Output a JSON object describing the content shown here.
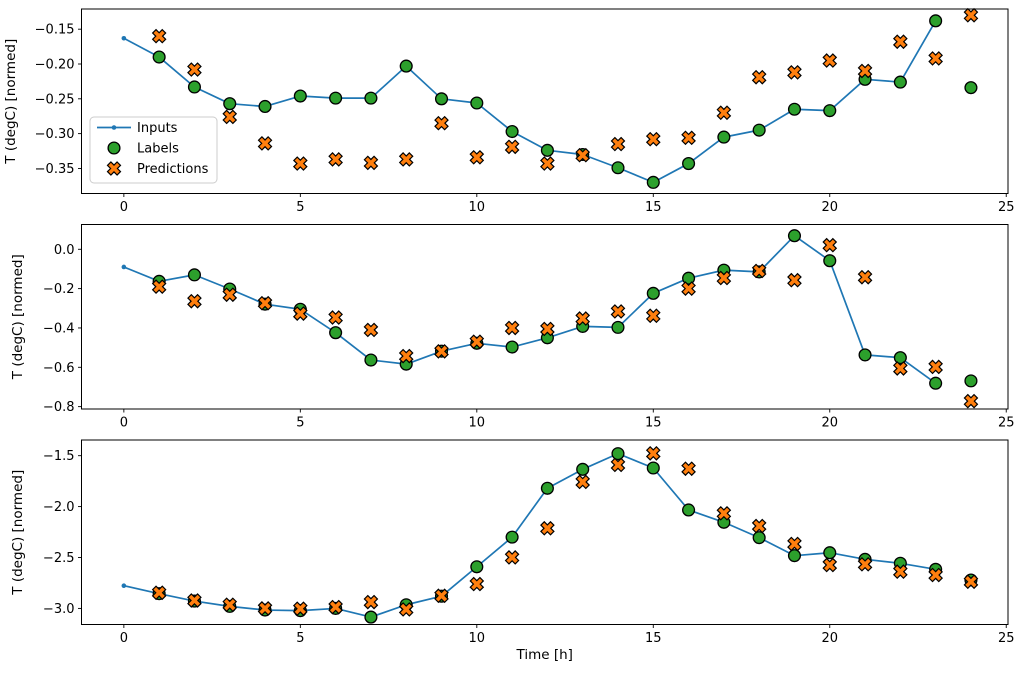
{
  "figure": {
    "background": "#ffffff",
    "xlabel": "Time [h]",
    "ylabel": "T (degC) [normed]"
  },
  "colors": {
    "inputs_line": "#1f77b4",
    "labels_marker": "#2ca02c",
    "predictions_marker": "#ff7f0e",
    "marker_edge": "#000000",
    "legend_border": "#cccccc",
    "legend_background": "#ffffff"
  },
  "legend": {
    "items": [
      {
        "label": "Inputs",
        "marker": "line-dot"
      },
      {
        "label": "Labels",
        "marker": "circle"
      },
      {
        "label": "Predictions",
        "marker": "x-cross"
      }
    ]
  },
  "chart_data": [
    {
      "type": "line",
      "title": "",
      "xlabel": "",
      "ylabel": "T (degC) [normed]",
      "xlim": [
        -1.2,
        25.05
      ],
      "ylim": [
        -0.386,
        -0.121
      ],
      "grid": false,
      "legend": true,
      "legend_position": "center-left",
      "xticks": [
        {
          "value": 0,
          "label": "0"
        },
        {
          "value": 5,
          "label": "5"
        },
        {
          "value": 10,
          "label": "10"
        },
        {
          "value": 15,
          "label": "15"
        },
        {
          "value": 20,
          "label": "20"
        },
        {
          "value": 25,
          "label": "25"
        }
      ],
      "yticks": [
        {
          "value": -0.15,
          "label": "−0.15"
        },
        {
          "value": -0.2,
          "label": "−0.20"
        },
        {
          "value": -0.25,
          "label": "−0.25"
        },
        {
          "value": -0.3,
          "label": "−0.30"
        },
        {
          "value": -0.35,
          "label": "−0.35"
        }
      ],
      "series": [
        {
          "name": "Inputs",
          "kind": "line",
          "color": "#1f77b4",
          "x": [
            0,
            1,
            2,
            3,
            4,
            5,
            6,
            7,
            8,
            9,
            10,
            11,
            12,
            13,
            14,
            15,
            16,
            17,
            18,
            19,
            20,
            21,
            22,
            23
          ],
          "y": [
            -0.163,
            -0.19,
            -0.233,
            -0.257,
            -0.261,
            -0.246,
            -0.249,
            -0.249,
            -0.203,
            -0.25,
            -0.256,
            -0.297,
            -0.324,
            -0.33,
            -0.349,
            -0.37,
            -0.343,
            -0.305,
            -0.295,
            -0.265,
            -0.267,
            -0.222,
            -0.226,
            -0.138
          ]
        },
        {
          "name": "Labels",
          "kind": "scatter_circle",
          "color": "#2ca02c",
          "x": [
            1,
            2,
            3,
            4,
            5,
            6,
            7,
            8,
            9,
            10,
            11,
            12,
            13,
            14,
            15,
            16,
            17,
            18,
            19,
            20,
            21,
            22,
            23,
            24
          ],
          "y": [
            -0.19,
            -0.233,
            -0.257,
            -0.261,
            -0.246,
            -0.249,
            -0.249,
            -0.203,
            -0.25,
            -0.256,
            -0.297,
            -0.324,
            -0.33,
            -0.349,
            -0.37,
            -0.343,
            -0.305,
            -0.295,
            -0.265,
            -0.267,
            -0.222,
            -0.226,
            -0.138,
            -0.234
          ]
        },
        {
          "name": "Predictions",
          "kind": "scatter_x",
          "color": "#ff7f0e",
          "x": [
            1,
            2,
            3,
            4,
            5,
            6,
            7,
            8,
            9,
            10,
            11,
            12,
            13,
            14,
            15,
            16,
            17,
            18,
            19,
            20,
            21,
            22,
            23,
            24
          ],
          "y": [
            -0.16,
            -0.208,
            -0.276,
            -0.314,
            -0.343,
            -0.337,
            -0.342,
            -0.337,
            -0.285,
            -0.334,
            -0.319,
            -0.343,
            -0.331,
            -0.315,
            -0.308,
            -0.306,
            -0.27,
            -0.219,
            -0.212,
            -0.195,
            -0.21,
            -0.168,
            -0.192,
            -0.13
          ]
        }
      ]
    },
    {
      "type": "line",
      "title": "",
      "xlabel": "",
      "ylabel": "T (degC) [normed]",
      "xlim": [
        -1.2,
        25.05
      ],
      "ylim": [
        -0.812,
        0.126
      ],
      "grid": false,
      "legend": false,
      "xticks": [
        {
          "value": 0,
          "label": "0"
        },
        {
          "value": 5,
          "label": "5"
        },
        {
          "value": 10,
          "label": "10"
        },
        {
          "value": 15,
          "label": "15"
        },
        {
          "value": 20,
          "label": "20"
        },
        {
          "value": 25,
          "label": "25"
        }
      ],
      "yticks": [
        {
          "value": 0.0,
          "label": "0.0"
        },
        {
          "value": -0.2,
          "label": "−0.2"
        },
        {
          "value": -0.4,
          "label": "−0.4"
        },
        {
          "value": -0.6,
          "label": "−0.6"
        },
        {
          "value": -0.8,
          "label": "−0.8"
        }
      ],
      "series": [
        {
          "name": "Inputs",
          "kind": "line",
          "color": "#1f77b4",
          "x": [
            0,
            1,
            2,
            3,
            4,
            5,
            6,
            7,
            8,
            9,
            10,
            11,
            12,
            13,
            14,
            15,
            16,
            17,
            18,
            19,
            20,
            21,
            22,
            23
          ],
          "y": [
            -0.09,
            -0.163,
            -0.13,
            -0.202,
            -0.279,
            -0.305,
            -0.424,
            -0.563,
            -0.584,
            -0.518,
            -0.478,
            -0.497,
            -0.45,
            -0.392,
            -0.397,
            -0.224,
            -0.147,
            -0.106,
            -0.115,
            0.069,
            -0.058,
            -0.537,
            -0.551,
            -0.681
          ]
        },
        {
          "name": "Labels",
          "kind": "scatter_circle",
          "color": "#2ca02c",
          "x": [
            1,
            2,
            3,
            4,
            5,
            6,
            7,
            8,
            9,
            10,
            11,
            12,
            13,
            14,
            15,
            16,
            17,
            18,
            19,
            20,
            21,
            22,
            23,
            24
          ],
          "y": [
            -0.163,
            -0.13,
            -0.202,
            -0.279,
            -0.305,
            -0.424,
            -0.563,
            -0.584,
            -0.518,
            -0.478,
            -0.497,
            -0.45,
            -0.392,
            -0.397,
            -0.224,
            -0.147,
            -0.106,
            -0.115,
            0.069,
            -0.058,
            -0.537,
            -0.551,
            -0.681,
            -0.669
          ]
        },
        {
          "name": "Predictions",
          "kind": "scatter_x",
          "color": "#ff7f0e",
          "x": [
            1,
            2,
            3,
            4,
            5,
            6,
            7,
            8,
            9,
            10,
            11,
            12,
            13,
            14,
            15,
            16,
            17,
            18,
            19,
            20,
            21,
            22,
            23,
            24
          ],
          "y": [
            -0.19,
            -0.264,
            -0.231,
            -0.274,
            -0.327,
            -0.347,
            -0.41,
            -0.543,
            -0.519,
            -0.47,
            -0.4,
            -0.405,
            -0.352,
            -0.316,
            -0.338,
            -0.2,
            -0.146,
            -0.11,
            -0.157,
            0.021,
            -0.142,
            -0.606,
            -0.598,
            -0.772
          ]
        }
      ]
    },
    {
      "type": "line",
      "title": "",
      "xlabel": "Time [h]",
      "ylabel": "T (degC) [normed]",
      "xlim": [
        -1.2,
        25.05
      ],
      "ylim": [
        -3.158,
        -1.346
      ],
      "grid": false,
      "legend": false,
      "xticks": [
        {
          "value": 0,
          "label": "0"
        },
        {
          "value": 5,
          "label": "5"
        },
        {
          "value": 10,
          "label": "10"
        },
        {
          "value": 15,
          "label": "15"
        },
        {
          "value": 20,
          "label": "20"
        },
        {
          "value": 25,
          "label": "25"
        }
      ],
      "yticks": [
        {
          "value": -1.5,
          "label": "−1.5"
        },
        {
          "value": -2.0,
          "label": "−2.0"
        },
        {
          "value": -2.5,
          "label": "−2.5"
        },
        {
          "value": -3.0,
          "label": "−3.0"
        }
      ],
      "series": [
        {
          "name": "Inputs",
          "kind": "line",
          "color": "#1f77b4",
          "x": [
            0,
            1,
            2,
            3,
            4,
            5,
            6,
            7,
            8,
            9,
            10,
            11,
            12,
            13,
            14,
            15,
            16,
            17,
            18,
            19,
            20,
            21,
            22,
            23
          ],
          "y": [
            -2.777,
            -2.855,
            -2.928,
            -2.98,
            -3.016,
            -3.022,
            -3.0,
            -3.085,
            -2.964,
            -2.88,
            -2.591,
            -2.3,
            -1.82,
            -1.634,
            -1.48,
            -1.621,
            -2.033,
            -2.154,
            -2.305,
            -2.482,
            -2.453,
            -2.518,
            -2.557,
            -2.616
          ]
        },
        {
          "name": "Labels",
          "kind": "scatter_circle",
          "color": "#2ca02c",
          "x": [
            1,
            2,
            3,
            4,
            5,
            6,
            7,
            8,
            9,
            10,
            11,
            12,
            13,
            14,
            15,
            16,
            17,
            18,
            19,
            20,
            21,
            22,
            23,
            24
          ],
          "y": [
            -2.855,
            -2.928,
            -2.98,
            -3.016,
            -3.022,
            -3.0,
            -3.085,
            -2.964,
            -2.88,
            -2.591,
            -2.3,
            -1.82,
            -1.634,
            -1.48,
            -1.621,
            -2.033,
            -2.154,
            -2.305,
            -2.482,
            -2.453,
            -2.518,
            -2.557,
            -2.616,
            -2.721
          ]
        },
        {
          "name": "Predictions",
          "kind": "scatter_x",
          "color": "#ff7f0e",
          "x": [
            1,
            2,
            3,
            4,
            5,
            6,
            7,
            8,
            9,
            10,
            11,
            12,
            13,
            14,
            15,
            16,
            17,
            18,
            19,
            20,
            21,
            22,
            23,
            24
          ],
          "y": [
            -2.846,
            -2.922,
            -2.964,
            -3.0,
            -3.003,
            -2.987,
            -2.938,
            -3.01,
            -2.876,
            -2.761,
            -2.499,
            -2.213,
            -1.758,
            -1.591,
            -1.477,
            -1.628,
            -2.066,
            -2.191,
            -2.367,
            -2.574,
            -2.567,
            -2.639,
            -2.672,
            -2.738
          ]
        }
      ]
    }
  ]
}
